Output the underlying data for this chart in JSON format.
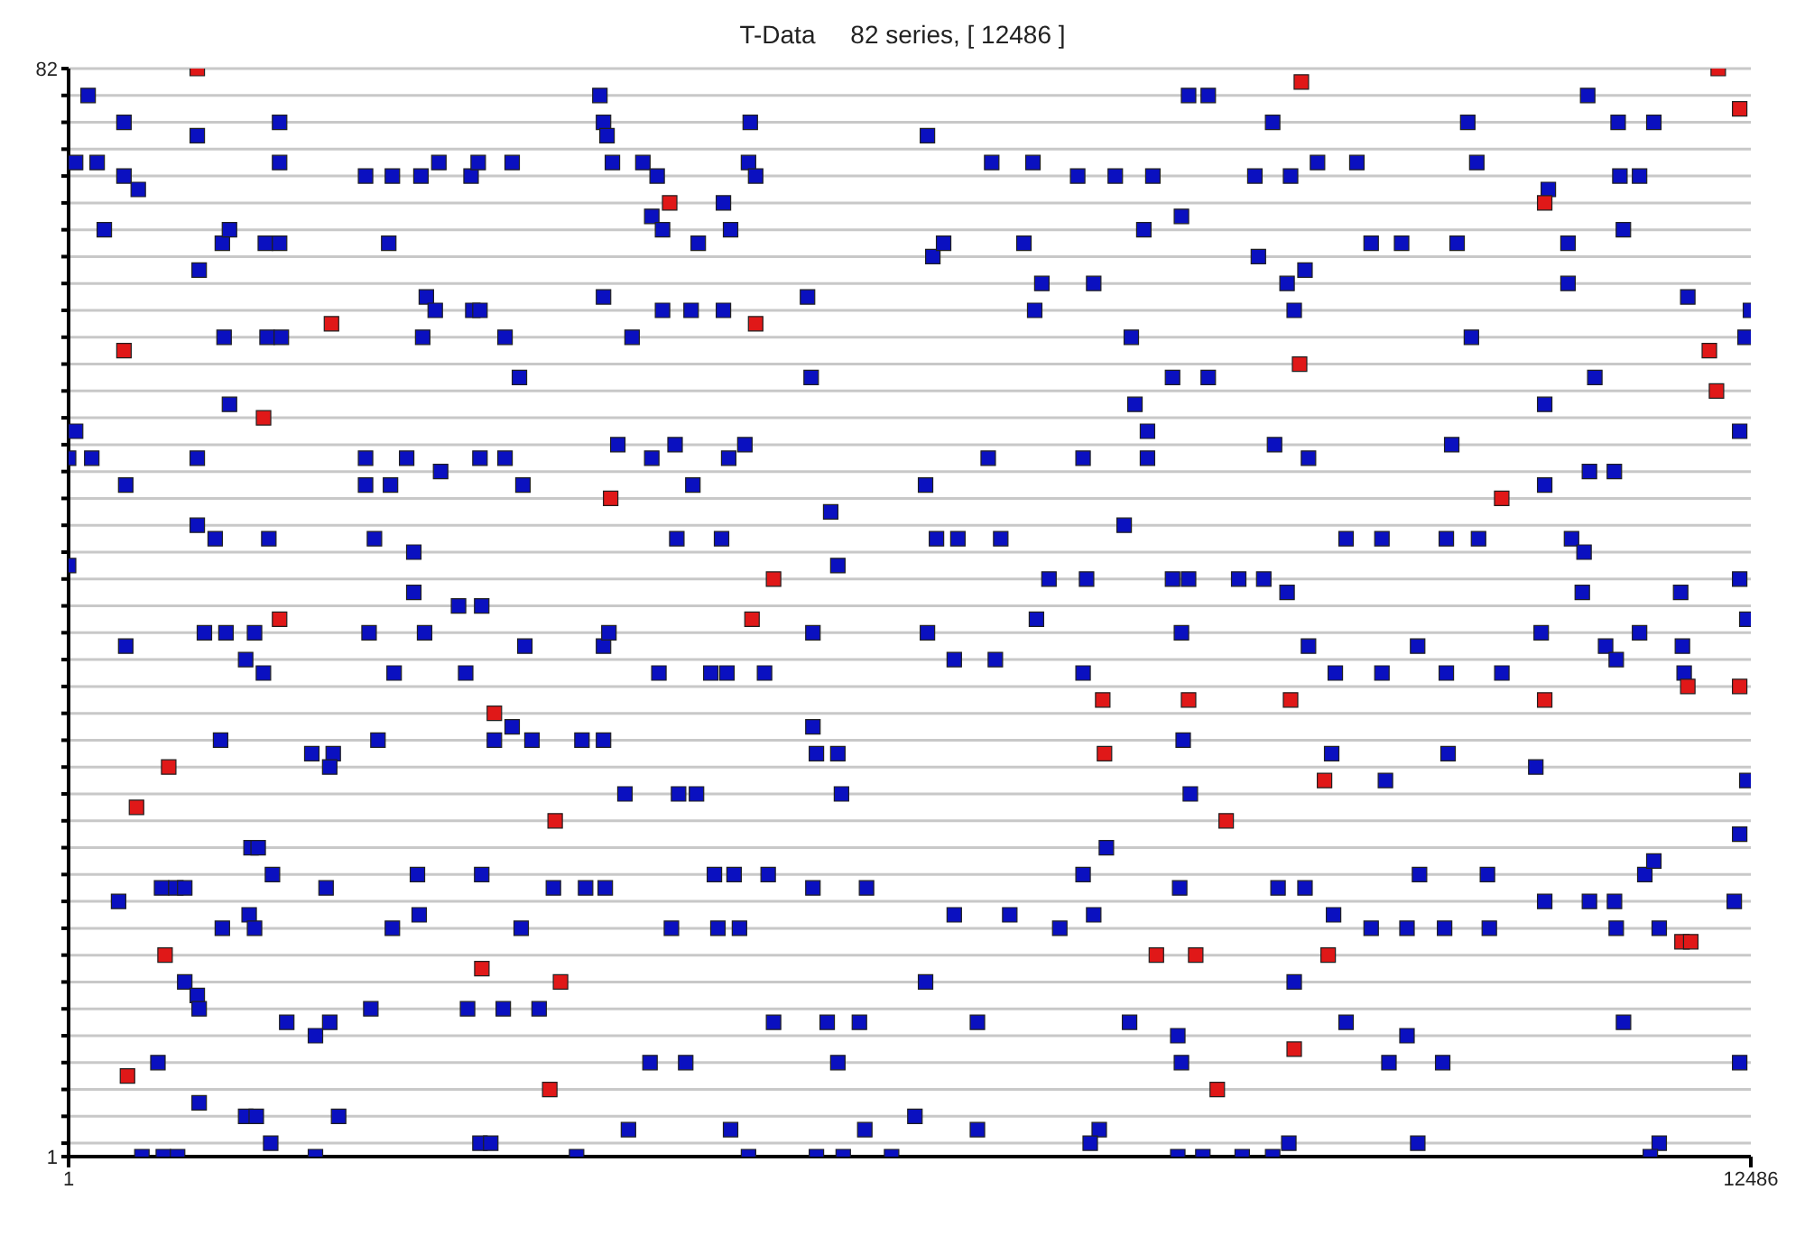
{
  "chart_data": {
    "type": "scatter",
    "title": "T-Data     82 series, [ 12486 ]",
    "xlim": [
      1,
      12486
    ],
    "ylim": [
      1,
      82
    ],
    "xticks": [
      1,
      12486
    ],
    "yticks": [
      1,
      {
        "value": 2,
        "label": null
      },
      {
        "value": 4,
        "label": null
      },
      {
        "value": 6,
        "label": null
      },
      {
        "value": 8,
        "label": null
      },
      {
        "value": 10,
        "label": null
      },
      {
        "value": 12,
        "label": null
      },
      {
        "value": 14,
        "label": null
      },
      {
        "value": 16,
        "label": null
      },
      {
        "value": 18,
        "label": null
      },
      {
        "value": 20,
        "label": null
      },
      {
        "value": 22,
        "label": null
      },
      {
        "value": 24,
        "label": null
      },
      {
        "value": 26,
        "label": null
      },
      {
        "value": 28,
        "label": null
      },
      {
        "value": 30,
        "label": null
      },
      {
        "value": 32,
        "label": null
      },
      {
        "value": 34,
        "label": null
      },
      {
        "value": 36,
        "label": null
      },
      {
        "value": 38,
        "label": null
      },
      {
        "value": 40,
        "label": null
      },
      {
        "value": 42,
        "label": null
      },
      {
        "value": 44,
        "label": null
      },
      {
        "value": 46,
        "label": null
      },
      {
        "value": 48,
        "label": null
      },
      {
        "value": 50,
        "label": null
      },
      {
        "value": 52,
        "label": null
      },
      {
        "value": 54,
        "label": null
      },
      {
        "value": 56,
        "label": null
      },
      {
        "value": 58,
        "label": null
      },
      {
        "value": 60,
        "label": null
      },
      {
        "value": 62,
        "label": null
      },
      {
        "value": 64,
        "label": null
      },
      {
        "value": 66,
        "label": null
      },
      {
        "value": 68,
        "label": null
      },
      {
        "value": 70,
        "label": null
      },
      {
        "value": 72,
        "label": null
      },
      {
        "value": 74,
        "label": null
      },
      {
        "value": 76,
        "label": null
      },
      {
        "value": 78,
        "label": null
      },
      {
        "value": 80,
        "label": null
      },
      82
    ],
    "grid": "y",
    "marker": "square",
    "legend": false,
    "series": [
      {
        "color": "#0a10c0",
        "x": [
          146,
          412,
          53,
          213,
          412,
          518,
          266,
          956,
          1567,
          1567,
          970,
          1142,
          1195,
          1461,
          1567,
          1155,
          1474,
          1580,
          1195,
          956,
          53,
          1,
          173,
          425,
          956,
          1089,
          1487,
          1,
          425,
          1009,
          1169,
          1381,
          1315,
          1447,
          1129,
          1355,
          1408,
          1514,
          691,
          797,
          863,
          372,
          1142,
          1341,
          1381,
          863,
          956,
          970,
          664,
          970,
          1315,
          1394,
          1501,
          545,
          704,
          810,
          1833,
          2205,
          2404,
          2377,
          2656,
          2616,
          2749,
          2988,
          3041,
          3293,
          3347,
          2629,
          3001,
          3054,
          2722,
          3240,
          2205,
          2205,
          2510,
          2762,
          3054,
          3240,
          2390,
          3373,
          2271,
          2563,
          2563,
          2895,
          3067,
          2643,
          2231,
          2417,
          2948,
          3387,
          3293,
          3161,
          1806,
          1965,
          2297,
          1939,
          2590,
          3067,
          1912,
          1620,
          1939,
          1833,
          2244,
          2404,
          2603,
          2962,
          3227,
          3493,
          2005,
          3054,
          3134,
          3360,
          3440,
          3811,
          3971,
          3838,
          3984,
          3599,
          3944,
          3971,
          3997,
          4037,
          4263,
          4369,
          4329,
          4409,
          4861,
          4914,
          5060,
          5047,
          5100,
          4674,
          4183,
          3971,
          4409,
          4621,
          4861,
          5485,
          5512,
          4329,
          4502,
          4077,
          4634,
          4900,
          5020,
          4515,
          4847,
          5657,
          5710,
          5525,
          3971,
          4011,
          4382,
          4767,
          4887,
          5166,
          5525,
          5551,
          5710,
          5737,
          4130,
          4528,
          4661,
          4794,
          4940,
          5193,
          5525,
          5923,
          4475,
          4820,
          4980,
          4316,
          4581,
          5233,
          5631,
          5870,
          5710,
          4156,
          4914,
          5910,
          5047,
          5551,
          5750,
          6109,
          3771,
          6375,
          6852,
          7158,
          7490,
          7769,
          8048,
          8313,
          8459,
          8260,
          7981,
          6415,
          6495,
          7091,
          7224,
          7171,
          7609,
          7888,
          8194,
          8459,
          7915,
          8008,
          6361,
          6826,
          7530,
          8008,
          7835,
          6442,
          6601,
          6919,
          7277,
          7556,
          8194,
          8313,
          6375,
          6574,
          6879,
          7184,
          7530,
          8260,
          8273,
          8326,
          7530,
          7703,
          8247,
          6574,
          6986,
          7609,
          7357,
          6361,
          6746,
          7875,
          8233,
          8260,
          7650,
          7583,
          8233,
          8419,
          8711,
          6746,
          6282,
          8937,
          9270,
          9562,
          8805,
          9070,
          10385,
          10452,
          10983,
          11275,
          11501,
          11766,
          11514,
          11660,
          8831,
          9044,
          9177,
          9668,
          9894,
          10306,
          11129,
          11540,
          11129,
          9097,
          10412,
          10956,
          11328,
          12018,
          12483,
          12443,
          8951,
          9203,
          10266,
          11288,
          11473,
          12403,
          10956,
          9482,
          9748,
          10226,
          10465,
          11155,
          11248,
          8685,
          8871,
          9044,
          11235,
          11965,
          12403,
          9203,
          10013,
          10930,
          11408,
          11660,
          11978,
          9402,
          9748,
          10226,
          10638,
          11487,
          11991,
          12456,
          9375,
          9774,
          10239,
          10890,
          12456,
          12403,
          8977,
          9177,
          10027,
          10531,
          11699,
          11766,
          11288,
          11474,
          9389,
          9668,
          9934,
          10213,
          10545,
          10956,
          11487,
          11806,
          12363,
          9097,
          9482,
          9934,
          10199,
          9800,
          11541,
          12403,
          9057,
          10014,
          11806,
          11740,
          8937
        ],
        "values": [
          80,
          78,
          75,
          75,
          74,
          73,
          70,
          77,
          78,
          75,
          67,
          69,
          70,
          69,
          69,
          62,
          62,
          62,
          57,
          53,
          55,
          53,
          53,
          51,
          48,
          47,
          47,
          45,
          39,
          40,
          40,
          40,
          38,
          37,
          32,
          24,
          24,
          22,
          21,
          21,
          21,
          20,
          18,
          19,
          18,
          14,
          13,
          12,
          8,
          5,
          4,
          4,
          2,
          1,
          1,
          1,
          1,
          74,
          74,
          69,
          65,
          74,
          75,
          74,
          75,
          75,
          59,
          62,
          64,
          64,
          64,
          62,
          53,
          51,
          53,
          52,
          53,
          53,
          51,
          51,
          47,
          46,
          43,
          42,
          42,
          40,
          40,
          37,
          37,
          39,
          33,
          32,
          31,
          31,
          32,
          30,
          22,
          22,
          21,
          11,
          11,
          10,
          12,
          18,
          19,
          12,
          12,
          12,
          4,
          2,
          2,
          18,
          32,
          32,
          32,
          21,
          21,
          21,
          80,
          78,
          77,
          75,
          75,
          74,
          71,
          70,
          72,
          70,
          78,
          75,
          74,
          69,
          62,
          65,
          64,
          64,
          64,
          65,
          59,
          53,
          54,
          54,
          51,
          53,
          54,
          47,
          47,
          49,
          45,
          40,
          39,
          40,
          37,
          37,
          37,
          37,
          33,
          31,
          31,
          28,
          28,
          28,
          28,
          22,
          22,
          22,
          21,
          21,
          18,
          18,
          18,
          8,
          8,
          11,
          11,
          11,
          8,
          3,
          3,
          3,
          1,
          1,
          1,
          1,
          1,
          77,
          75,
          75,
          74,
          74,
          74,
          80,
          80,
          71,
          70,
          68,
          69,
          69,
          66,
          64,
          66,
          62,
          59,
          59,
          57,
          55,
          51,
          53,
          53,
          53,
          48,
          47,
          47,
          47,
          44,
          44,
          44,
          44,
          40,
          38,
          38,
          41,
          37,
          40,
          32,
          28,
          22,
          24,
          21,
          19,
          19,
          19,
          18,
          14,
          11,
          11,
          10,
          8,
          3,
          2,
          1,
          1,
          1,
          3,
          4,
          78,
          75,
          75,
          74,
          74,
          78,
          75,
          73,
          80,
          78,
          78,
          74,
          74,
          68,
          66,
          67,
          69,
          69,
          69,
          69,
          70,
          66,
          64,
          62,
          57,
          59,
          65,
          64,
          62,
          54,
          53,
          54,
          52,
          52,
          55,
          51,
          47,
          47,
          47,
          47,
          47,
          46,
          44,
          44,
          43,
          43,
          43,
          44,
          39,
          39,
          40,
          39,
          40,
          39,
          37,
          37,
          37,
          37,
          38,
          37,
          41,
          31,
          29,
          31,
          30,
          29,
          25,
          21,
          21,
          22,
          22,
          22,
          23,
          20,
          20,
          19,
          18,
          18,
          18,
          18,
          20,
          18,
          18,
          20,
          14,
          11,
          10,
          8,
          8,
          11,
          8,
          2,
          2,
          2,
          1,
          1
        ]
      },
      {
        "color": "#e01818",
        "x": [
          956,
          412,
          1448,
          1952,
          4462,
          5100,
          4024,
          5233,
          5073,
          1567,
          3161,
          744,
          505,
          3612,
          717,
          3068,
          3652,
          438,
          3572,
          9150,
          10956,
          9137,
          10637,
          7676,
          7689,
          8313,
          9070,
          9322,
          8592,
          8074,
          8366,
          9349,
          8526,
          9097,
          12244,
          12403,
          12178,
          12231,
          12018,
          12403,
          10956,
          11975,
          12040
        ],
        "values": [
          82,
          61,
          56,
          63,
          72,
          63,
          50,
          44,
          41,
          41,
          34,
          30,
          27,
          26,
          16,
          15,
          14,
          7,
          6,
          81,
          72,
          60,
          50,
          35,
          31,
          35,
          35,
          29,
          26,
          16,
          16,
          16,
          6,
          9,
          82,
          79,
          61,
          58,
          36,
          36,
          35,
          17,
          17
        ]
      }
    ]
  }
}
